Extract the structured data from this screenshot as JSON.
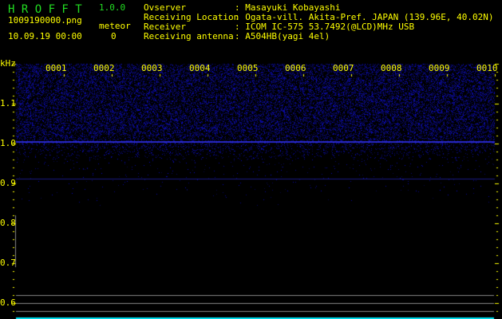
{
  "app": {
    "title": "H R O F F T",
    "version": "1.0.0",
    "filename": "1009190000.png",
    "datetime": "10.09.19 00:00",
    "meteor_label": "meteor",
    "meteor_count": "0"
  },
  "info": [
    {
      "label": "Ovserver",
      "value": ": Masayuki Kobayashi"
    },
    {
      "label": "Receiving Location",
      "value": ": Ogata-vill. Akita-Pref. JAPAN (139.96E, 40.02N)"
    },
    {
      "label": "Receiver",
      "value": ": ICOM IC-575 53.7492(@LCD)MHz USB"
    },
    {
      "label": "Receiving antenna",
      "value": ": A504HB(yagi 4el)"
    }
  ],
  "spectrogram": {
    "unit": "kHz",
    "y_ticks": [
      "1.1",
      "1.0",
      "0.9",
      "0.8",
      "0.7",
      "0.6"
    ],
    "time_labels": [
      "0001",
      "0002",
      "0003",
      "0004",
      "0005",
      "0006",
      "0007",
      "0008",
      "0009",
      "0010"
    ],
    "colors": {
      "text": "#ffff00",
      "title": "#22dd22",
      "noise": "#2020c0",
      "grid": "#888888",
      "bottom": "#00e0f0"
    }
  }
}
